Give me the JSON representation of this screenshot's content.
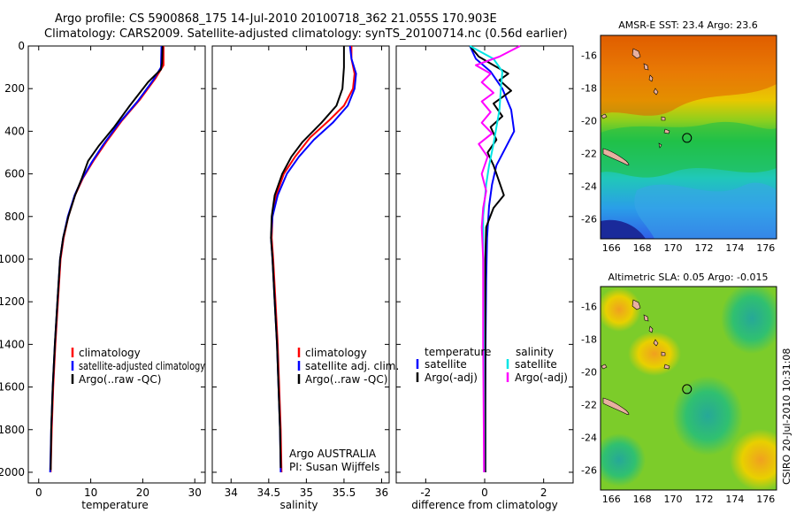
{
  "header": {
    "line1": "Argo profile: CS 5900868_175 14-Jul-2010 20100718_362 21.055S 170.903E",
    "line2": "Climatology: CARS2009. Satellite-adjusted climatology: synTS_20100714.nc (0.56d earlier)"
  },
  "side_label": "CSIRO 20-Jul-2010 10:31:08",
  "colors": {
    "climatology": "#ff0000",
    "satellite": "#0000ff",
    "argo": "#000000",
    "diff_salinity_sat": "#00e5e5",
    "diff_salinity_argo": "#ff00ff"
  },
  "chart_data": [
    {
      "type": "line",
      "id": "temperature",
      "title": "",
      "xlabel": "temperature",
      "ylabel": "",
      "xlim": [
        -2,
        32
      ],
      "ylim": [
        2050,
        0
      ],
      "xticks": [
        "0",
        "10",
        "20",
        "30"
      ],
      "xtick_values": [
        0,
        10,
        20,
        30
      ],
      "yticks": [
        "0",
        "200",
        "400",
        "600",
        "800",
        "1000",
        "1200",
        "1400",
        "1600",
        "1800",
        "2000"
      ],
      "ytick_values": [
        0,
        200,
        400,
        600,
        800,
        1000,
        1200,
        1400,
        1600,
        1800,
        2000
      ],
      "legend": [
        "climatology",
        "satellite-adjusted climatology",
        "Argo(..raw -QC)"
      ],
      "legend_position": "bottom-center",
      "series": [
        {
          "name": "climatology",
          "color_key": "climatology",
          "points": [
            [
              24,
              0
            ],
            [
              24,
              90
            ],
            [
              22.5,
              150
            ],
            [
              19.5,
              250
            ],
            [
              16,
              350
            ],
            [
              13,
              450
            ],
            [
              10.5,
              540
            ],
            [
              8.5,
              620
            ],
            [
              7,
              700
            ],
            [
              5.7,
              800
            ],
            [
              4.8,
              900
            ],
            [
              4.2,
              1000
            ],
            [
              3.7,
              1200
            ],
            [
              3.2,
              1400
            ],
            [
              2.8,
              1600
            ],
            [
              2.5,
              1800
            ],
            [
              2.3,
              2000
            ]
          ]
        },
        {
          "name": "satellite",
          "color_key": "satellite",
          "points": [
            [
              23.6,
              0
            ],
            [
              23.5,
              100
            ],
            [
              22,
              160
            ],
            [
              19,
              260
            ],
            [
              15.5,
              360
            ],
            [
              12.5,
              460
            ],
            [
              10.2,
              545
            ],
            [
              8.3,
              625
            ],
            [
              6.9,
              700
            ],
            [
              5.6,
              800
            ],
            [
              4.7,
              900
            ],
            [
              4.1,
              1000
            ],
            [
              3.6,
              1200
            ],
            [
              3.1,
              1400
            ],
            [
              2.7,
              1600
            ],
            [
              2.4,
              1800
            ],
            [
              2.2,
              2000
            ]
          ]
        },
        {
          "name": "argo",
          "color_key": "argo",
          "points": [
            [
              23.8,
              0
            ],
            [
              23.7,
              80
            ],
            [
              23.5,
              110
            ],
            [
              21,
              170
            ],
            [
              17.5,
              280
            ],
            [
              14.5,
              380
            ],
            [
              11.5,
              470
            ],
            [
              9.5,
              540
            ],
            [
              8.3,
              620
            ],
            [
              7,
              700
            ],
            [
              5.7,
              800
            ],
            [
              4.7,
              900
            ],
            [
              4.1,
              1000
            ],
            [
              3.6,
              1200
            ],
            [
              3.1,
              1400
            ],
            [
              2.7,
              1600
            ],
            [
              2.4,
              1800
            ],
            [
              2.3,
              1990
            ]
          ]
        }
      ]
    },
    {
      "type": "line",
      "id": "salinity",
      "title": "",
      "xlabel": "salinity",
      "ylabel": "",
      "xlim": [
        33.75,
        36.1
      ],
      "ylim": [
        2050,
        0
      ],
      "xticks": [
        "34",
        "34.5",
        "35",
        "35.5",
        "36"
      ],
      "xtick_values": [
        34,
        34.5,
        35,
        35.5,
        36
      ],
      "legend": [
        "climatology",
        "satellite adj. clim.",
        "Argo(..raw -QC)"
      ],
      "legend_position": "bottom-center",
      "annotation": [
        "Argo AUSTRALIA",
        "PI: Susan Wijffels"
      ],
      "series": [
        {
          "name": "climatology",
          "color_key": "climatology",
          "points": [
            [
              35.6,
              0
            ],
            [
              35.6,
              60
            ],
            [
              35.64,
              130
            ],
            [
              35.62,
              200
            ],
            [
              35.5,
              280
            ],
            [
              35.3,
              350
            ],
            [
              35.05,
              430
            ],
            [
              34.85,
              520
            ],
            [
              34.7,
              600
            ],
            [
              34.6,
              700
            ],
            [
              34.55,
              800
            ],
            [
              34.54,
              900
            ],
            [
              34.56,
              1000
            ],
            [
              34.59,
              1200
            ],
            [
              34.62,
              1400
            ],
            [
              34.64,
              1600
            ],
            [
              34.66,
              1800
            ],
            [
              34.67,
              2000
            ]
          ]
        },
        {
          "name": "satellite",
          "color_key": "satellite",
          "points": [
            [
              35.58,
              0
            ],
            [
              35.6,
              60
            ],
            [
              35.66,
              130
            ],
            [
              35.64,
              200
            ],
            [
              35.55,
              280
            ],
            [
              35.35,
              360
            ],
            [
              35.1,
              440
            ],
            [
              34.9,
              520
            ],
            [
              34.74,
              600
            ],
            [
              34.62,
              700
            ],
            [
              34.55,
              800
            ],
            [
              34.53,
              900
            ],
            [
              34.55,
              1000
            ],
            [
              34.58,
              1200
            ],
            [
              34.61,
              1400
            ],
            [
              34.63,
              1600
            ],
            [
              34.65,
              1800
            ],
            [
              34.66,
              2000
            ]
          ]
        },
        {
          "name": "argo",
          "color_key": "argo",
          "points": [
            [
              35.5,
              0
            ],
            [
              35.5,
              100
            ],
            [
              35.48,
              200
            ],
            [
              35.4,
              280
            ],
            [
              35.2,
              360
            ],
            [
              34.95,
              450
            ],
            [
              34.8,
              520
            ],
            [
              34.68,
              600
            ],
            [
              34.58,
              700
            ],
            [
              34.54,
              800
            ],
            [
              34.53,
              900
            ],
            [
              34.55,
              1000
            ],
            [
              34.58,
              1200
            ],
            [
              34.61,
              1400
            ],
            [
              34.63,
              1600
            ],
            [
              34.65,
              1800
            ],
            [
              34.66,
              1980
            ]
          ]
        }
      ]
    },
    {
      "type": "line",
      "id": "difference",
      "title": "",
      "xlabel": "difference from climatology",
      "ylabel": "",
      "xlim": [
        -3,
        3
      ],
      "ylim": [
        2050,
        0
      ],
      "xticks": [
        "-2",
        "0",
        "2"
      ],
      "xtick_values": [
        -2,
        0,
        2
      ],
      "legend": [
        "temperature",
        "satellite",
        "Argo(-adj)",
        "salinity",
        "satellite",
        "Argo(-adj)"
      ],
      "legend_position": "bottom-center",
      "series": [
        {
          "name": "temperature satellite",
          "color_key": "satellite",
          "points": [
            [
              -0.5,
              0
            ],
            [
              -0.3,
              60
            ],
            [
              0.2,
              120
            ],
            [
              0.6,
              200
            ],
            [
              0.9,
              300
            ],
            [
              1.0,
              400
            ],
            [
              0.7,
              480
            ],
            [
              0.4,
              560
            ],
            [
              0.25,
              650
            ],
            [
              0.15,
              750
            ],
            [
              0.08,
              900
            ],
            [
              0.05,
              1100
            ],
            [
              0.03,
              1400
            ],
            [
              0.02,
              1700
            ],
            [
              0.02,
              2000
            ]
          ]
        },
        {
          "name": "temperature Argo(-adj)",
          "color_key": "argo",
          "points": [
            [
              -0.5,
              0
            ],
            [
              -0.2,
              50
            ],
            [
              0.3,
              90
            ],
            [
              0.8,
              130
            ],
            [
              0.5,
              160
            ],
            [
              0.9,
              210
            ],
            [
              0.3,
              270
            ],
            [
              0.6,
              330
            ],
            [
              0.2,
              380
            ],
            [
              0.4,
              440
            ],
            [
              0.1,
              500
            ],
            [
              0.3,
              560
            ],
            [
              0.5,
              640
            ],
            [
              0.65,
              700
            ],
            [
              0.3,
              760
            ],
            [
              0.05,
              850
            ],
            [
              0.02,
              1000
            ],
            [
              0.02,
              1500
            ],
            [
              0.02,
              2000
            ]
          ]
        },
        {
          "name": "salinity satellite",
          "color_key": "diff_salinity_sat",
          "points": [
            [
              -0.5,
              0
            ],
            [
              0.3,
              60
            ],
            [
              0.6,
              120
            ],
            [
              0.55,
              200
            ],
            [
              0.5,
              300
            ],
            [
              0.4,
              380
            ],
            [
              0.3,
              460
            ],
            [
              0.15,
              560
            ],
            [
              0.05,
              650
            ],
            [
              -0.05,
              800
            ],
            [
              -0.05,
              1000
            ],
            [
              -0.03,
              1400
            ],
            [
              -0.02,
              1800
            ],
            [
              -0.02,
              2000
            ]
          ]
        },
        {
          "name": "salinity Argo(-adj)",
          "color_key": "diff_salinity_argo",
          "points": [
            [
              1.2,
              0
            ],
            [
              0.5,
              50
            ],
            [
              -0.3,
              90
            ],
            [
              0.2,
              130
            ],
            [
              -0.1,
              170
            ],
            [
              0.3,
              220
            ],
            [
              -0.1,
              260
            ],
            [
              0.2,
              310
            ],
            [
              -0.1,
              360
            ],
            [
              0.25,
              410
            ],
            [
              -0.2,
              460
            ],
            [
              0.1,
              520
            ],
            [
              -0.1,
              600
            ],
            [
              0.05,
              680
            ],
            [
              -0.05,
              760
            ],
            [
              -0.1,
              850
            ],
            [
              -0.05,
              1000
            ],
            [
              -0.05,
              1400
            ],
            [
              -0.03,
              1800
            ],
            [
              -0.02,
              2000
            ]
          ]
        }
      ]
    },
    {
      "type": "heatmap",
      "id": "sst_map",
      "title": "AMSR-E SST: 23.4 Argo: 23.6",
      "xticks": [
        "166",
        "168",
        "170",
        "172",
        "174",
        "176"
      ],
      "xtick_values": [
        166,
        168,
        170,
        172,
        174,
        176
      ],
      "yticks": [
        "-16",
        "-18",
        "-20",
        "-22",
        "-24",
        "-26"
      ],
      "ytick_values": [
        -16,
        -18,
        -20,
        -22,
        -24,
        -26
      ],
      "xlim": [
        165.3,
        176.7
      ],
      "ylim": [
        -27.2,
        -14.8
      ],
      "argo_position": [
        170.9,
        -21.05
      ]
    },
    {
      "type": "heatmap",
      "id": "sla_map",
      "title": "Altimetric SLA: 0.05 Argo: -0.015",
      "xticks": [
        "166",
        "168",
        "170",
        "172",
        "174",
        "176"
      ],
      "xtick_values": [
        166,
        168,
        170,
        172,
        174,
        176
      ],
      "yticks": [
        "-16",
        "-18",
        "-20",
        "-22",
        "-24",
        "-26"
      ],
      "ytick_values": [
        -16,
        -18,
        -20,
        -22,
        -24,
        -26
      ],
      "xlim": [
        165.3,
        176.7
      ],
      "ylim": [
        -27.2,
        -14.8
      ],
      "argo_position": [
        170.9,
        -21.05
      ]
    }
  ]
}
